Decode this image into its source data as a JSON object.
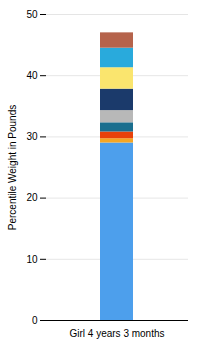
{
  "chart_data": {
    "type": "bar",
    "stacked": true,
    "grid": true,
    "ylabel": "Percentile Weight in Pounds",
    "categories": [
      "Girl 4 years 3 months"
    ],
    "series": [
      {
        "color": "#4D9FEC",
        "values": [
          29.0
        ]
      },
      {
        "color": "#F5A623",
        "values": [
          0.7
        ]
      },
      {
        "color": "#E8420A",
        "values": [
          1.1
        ]
      },
      {
        "color": "#1A6E8E",
        "values": [
          1.5
        ]
      },
      {
        "color": "#B8B8B8",
        "values": [
          2.0
        ]
      },
      {
        "color": "#1B3A6B",
        "values": [
          3.5
        ]
      },
      {
        "color": "#FAE56E",
        "values": [
          3.5
        ]
      },
      {
        "color": "#29AADC",
        "values": [
          3.2
        ]
      },
      {
        "color": "#B5634B",
        "values": [
          2.5
        ]
      }
    ],
    "ylim": [
      0,
      50
    ],
    "yticks": [
      0,
      10,
      20,
      30,
      40,
      50
    ]
  }
}
